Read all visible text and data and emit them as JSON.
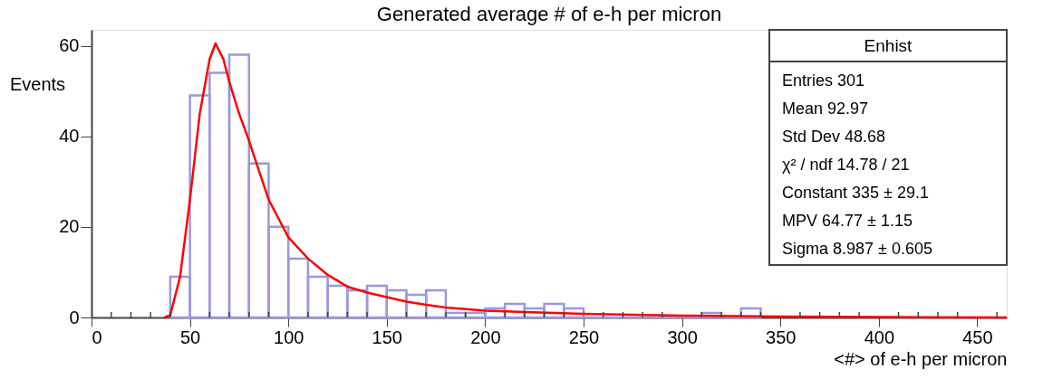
{
  "chart_data": {
    "type": "histogram",
    "title": "Generated average # of e-h per micron",
    "xlabel": "<#> of e-h per micron",
    "ylabel": "Events",
    "bins": [
      40,
      50,
      60,
      70,
      80,
      90,
      100,
      110,
      120,
      130,
      140,
      150,
      160,
      170,
      180,
      190,
      200,
      210,
      220,
      230,
      240,
      250,
      260,
      270,
      280,
      290,
      300,
      310,
      320,
      330,
      340
    ],
    "values": [
      9,
      49,
      54,
      58,
      34,
      20,
      13,
      9,
      7,
      6,
      7,
      6,
      5,
      6,
      1,
      1,
      2,
      3,
      2,
      3,
      2,
      0,
      0,
      0,
      0,
      0,
      0,
      1,
      0,
      2
    ],
    "color": "#9999dd",
    "series": [
      {
        "type": "line",
        "color": "#ff0000",
        "x": [
          37,
          40,
          45,
          50,
          55,
          60,
          63,
          67,
          70,
          75,
          80,
          90,
          100,
          110,
          120,
          130,
          140,
          150,
          160,
          170,
          180,
          200,
          220,
          250,
          300,
          350,
          400,
          465
        ],
        "values": [
          0,
          0.5,
          9,
          26,
          45,
          57,
          60.5,
          57,
          52,
          45,
          39,
          26,
          17.7,
          13,
          9.4,
          6.8,
          5.5,
          4.5,
          3.5,
          2.8,
          2.2,
          1.5,
          1.2,
          0.8,
          0.4,
          0.2,
          0.1,
          0
        ]
      }
    ],
    "xlim": [
      0,
      465
    ],
    "ylim": [
      0,
      63.5
    ],
    "xticks": [
      0,
      {
        "value": 10,
        "label": null
      },
      {
        "value": 20,
        "label": null
      },
      {
        "value": 30,
        "label": null
      },
      {
        "value": 40,
        "label": null
      },
      50,
      {
        "value": 60,
        "label": null
      },
      {
        "value": 70,
        "label": null
      },
      {
        "value": 80,
        "label": null
      },
      {
        "value": 90,
        "label": null
      },
      100,
      {
        "value": 110,
        "label": null
      },
      {
        "value": 120,
        "label": null
      },
      {
        "value": 130,
        "label": null
      },
      {
        "value": 140,
        "label": null
      },
      150,
      {
        "value": 160,
        "label": null
      },
      {
        "value": 170,
        "label": null
      },
      {
        "value": 180,
        "label": null
      },
      {
        "value": 190,
        "label": null
      },
      200,
      {
        "value": 210,
        "label": null
      },
      {
        "value": 220,
        "label": null
      },
      {
        "value": 230,
        "label": null
      },
      {
        "value": 240,
        "label": null
      },
      250,
      {
        "value": 260,
        "label": null
      },
      {
        "value": 270,
        "label": null
      },
      {
        "value": 280,
        "label": null
      },
      {
        "value": 290,
        "label": null
      },
      300,
      {
        "value": 310,
        "label": null
      },
      {
        "value": 320,
        "label": null
      },
      {
        "value": 330,
        "label": null
      },
      {
        "value": 340,
        "label": null
      },
      350,
      {
        "value": 360,
        "label": null
      },
      {
        "value": 370,
        "label": null
      },
      {
        "value": 380,
        "label": null
      },
      {
        "value": 390,
        "label": null
      },
      400,
      {
        "value": 410,
        "label": null
      },
      {
        "value": 420,
        "label": null
      },
      {
        "value": 430,
        "label": null
      },
      {
        "value": 440,
        "label": null
      },
      450,
      {
        "value": 460,
        "label": null
      }
    ],
    "yticks": [
      0,
      20,
      40,
      60
    ],
    "grid": false,
    "annotations": [
      "Enhist",
      "Entries 301",
      "Mean 92.97",
      "Std Dev 48.68",
      "χ² / ndf 14.78 / 21",
      "Constant 335 ± 29.1",
      "MPV 64.77 ± 1.15",
      "Sigma 8.987 ± 0.605"
    ]
  }
}
